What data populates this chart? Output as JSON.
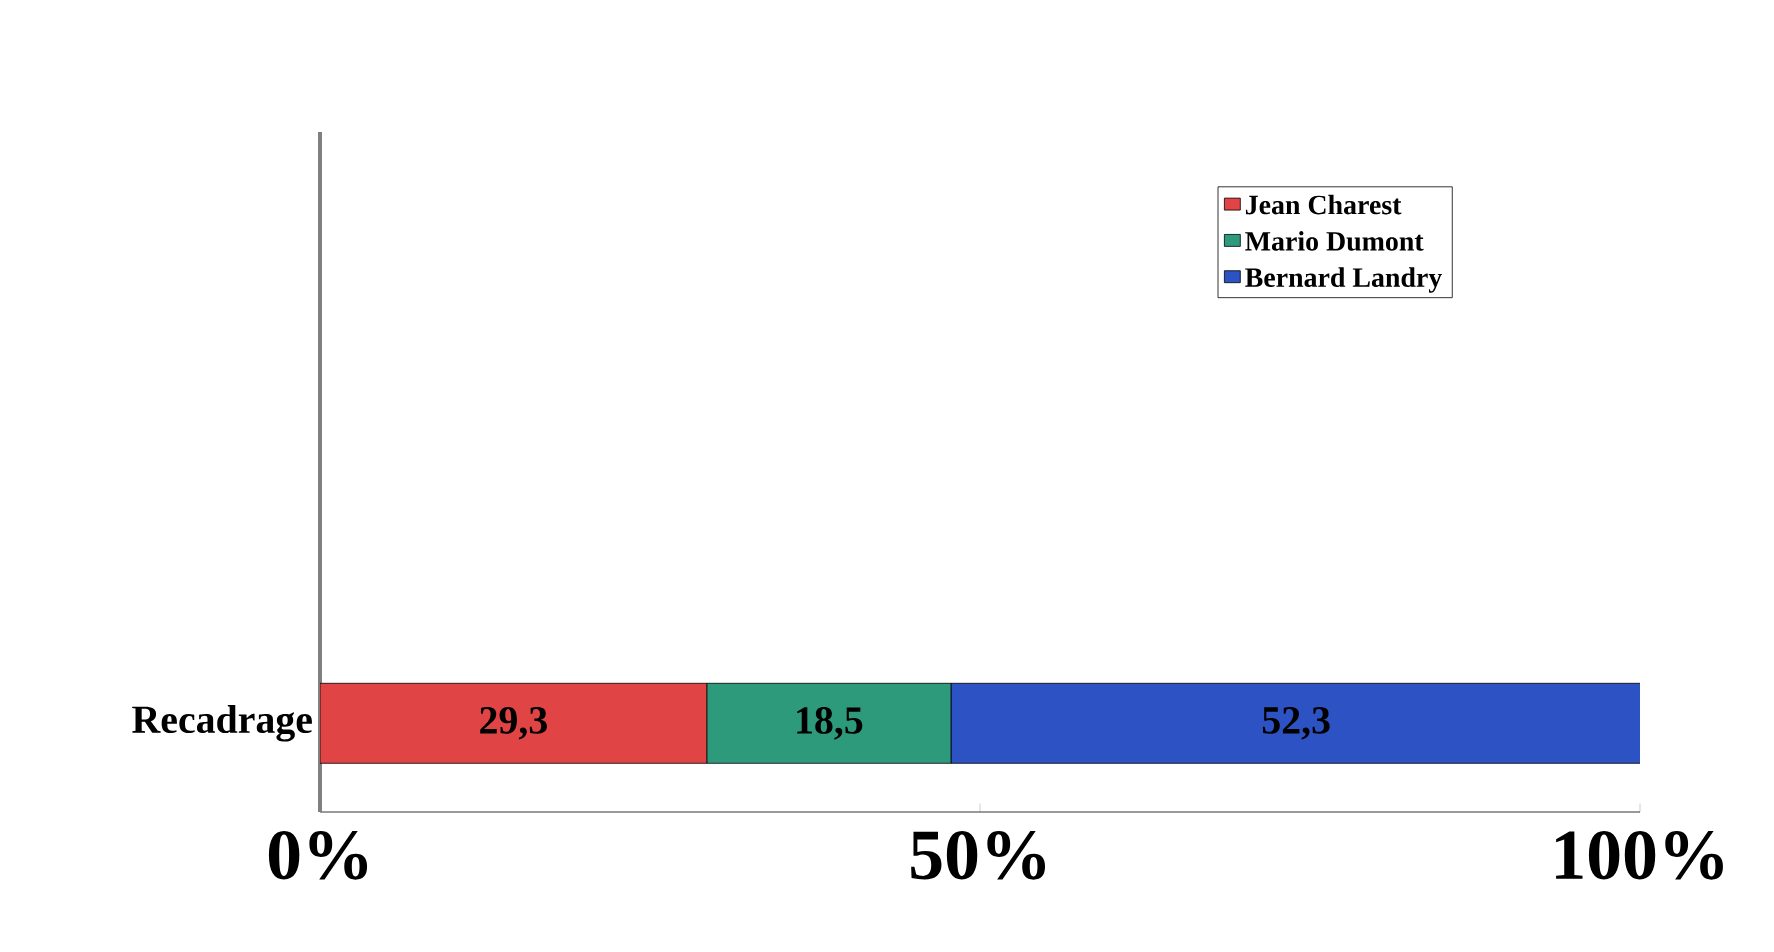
{
  "chart_data": {
    "type": "bar",
    "orientation": "horizontal",
    "stacked": true,
    "categories": [
      "Recadrage"
    ],
    "series": [
      {
        "name": "Jean Charest",
        "color": "#e04444",
        "values": [
          29.3
        ],
        "value_labels": [
          "29,3"
        ]
      },
      {
        "name": "Mario Dumont",
        "color": "#2e9a7c",
        "values": [
          18.5
        ],
        "value_labels": [
          "18,5"
        ]
      },
      {
        "name": "Bernard Landry",
        "color": "#2c52c4",
        "values": [
          52.3
        ],
        "value_labels": [
          "52,3"
        ]
      }
    ],
    "xlim": [
      0,
      100
    ],
    "xticks": [
      {
        "value": 0,
        "label": "0%"
      },
      {
        "value": 50,
        "label": "50%"
      },
      {
        "value": 100,
        "label": "100%"
      }
    ],
    "legend": "top right",
    "grid": false
  }
}
